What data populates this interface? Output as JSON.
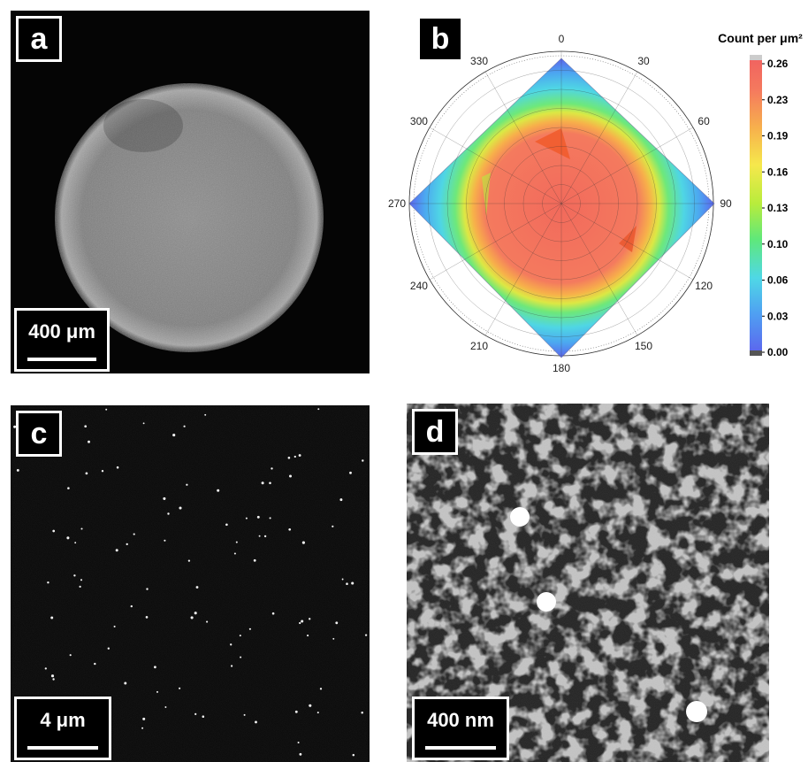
{
  "panels": {
    "a": {
      "label": "a",
      "scale_bar": "400 μm"
    },
    "b": {
      "label": "b"
    },
    "c": {
      "label": "c",
      "scale_bar": "4 μm"
    },
    "d": {
      "label": "d",
      "scale_bar": "400 nm"
    }
  },
  "chart_data": {
    "type": "heatmap",
    "projection": "polar",
    "angular_ticks": [
      "0",
      "30",
      "60",
      "90",
      "120",
      "150",
      "180",
      "210",
      "240",
      "270",
      "300",
      "330"
    ],
    "colorbar": {
      "title": "Count per μm²",
      "ticks": [
        0.26,
        0.23,
        0.19,
        0.16,
        0.13,
        0.1,
        0.06,
        0.03,
        0.0
      ],
      "colors": [
        "#5c66ee",
        "#4fa0f2",
        "#4fd8e6",
        "#5fe87a",
        "#b8ec3c",
        "#f6e84c",
        "#f7b24c",
        "#f57a5e",
        "#f06060"
      ]
    },
    "grid": true
  }
}
